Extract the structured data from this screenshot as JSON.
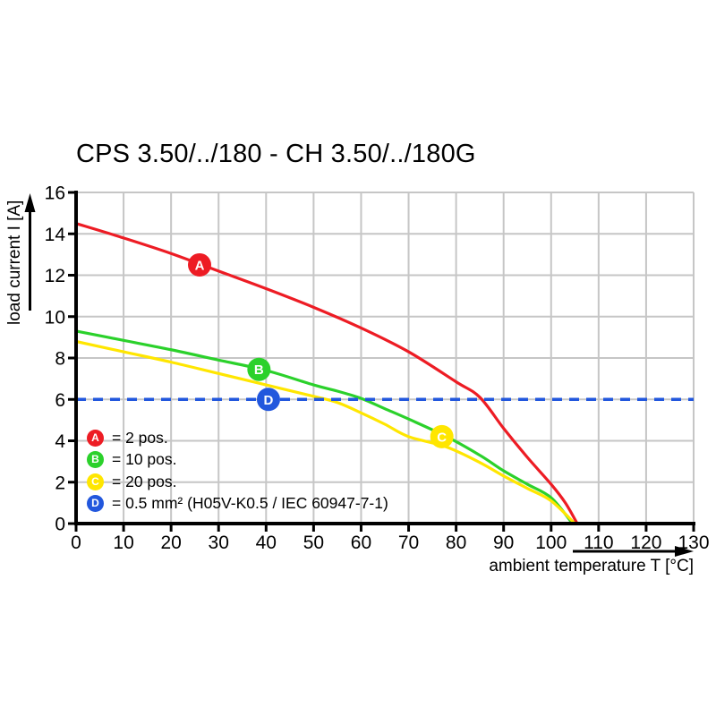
{
  "title": "CPS 3.50/../180 - CH 3.50/../180G",
  "axes": {
    "x_label": "ambient temperature T [°C]",
    "y_label": "load current I [A]"
  },
  "colors": {
    "grid": "#c6c6c6",
    "axis": "#000000",
    "background": "#ffffff"
  },
  "chart_data": {
    "type": "line",
    "title": "CPS 3.50/../180 - CH 3.50/../180G",
    "xlabel": "ambient temperature T [°C]",
    "ylabel": "load current I [A]",
    "xlim": [
      0,
      130
    ],
    "ylim": [
      0,
      16
    ],
    "x_ticks": [
      0,
      10,
      20,
      30,
      40,
      50,
      60,
      70,
      80,
      90,
      100,
      110,
      120,
      130
    ],
    "y_ticks": [
      0,
      2,
      4,
      6,
      8,
      10,
      12,
      14,
      16
    ],
    "grid": true,
    "legend_position": "inside-bottom-left",
    "series": [
      {
        "name": "A",
        "label": "2 pos.",
        "legend_label": "= 2 pos.",
        "color": "#ed1c24",
        "style": "solid",
        "points": [
          [
            0,
            14.5
          ],
          [
            10,
            13.8
          ],
          [
            20,
            13.05
          ],
          [
            30,
            12.2
          ],
          [
            40,
            11.35
          ],
          [
            50,
            10.45
          ],
          [
            60,
            9.45
          ],
          [
            70,
            8.3
          ],
          [
            80,
            6.85
          ],
          [
            85,
            6.1
          ],
          [
            90,
            4.6
          ],
          [
            95,
            3.2
          ],
          [
            100,
            1.9
          ],
          [
            103,
            1.0
          ],
          [
            105.5,
            0
          ]
        ],
        "marker": {
          "letter": "A",
          "x": 26,
          "y": 12.5
        }
      },
      {
        "name": "B",
        "label": "10 pos.",
        "legend_label": "= 10 pos.",
        "color": "#2bd12b",
        "style": "solid",
        "points": [
          [
            0,
            9.3
          ],
          [
            10,
            8.85
          ],
          [
            20,
            8.4
          ],
          [
            30,
            7.9
          ],
          [
            40,
            7.4
          ],
          [
            50,
            6.7
          ],
          [
            55,
            6.4
          ],
          [
            60,
            6.05
          ],
          [
            65,
            5.55
          ],
          [
            70,
            5.05
          ],
          [
            78,
            4.2
          ],
          [
            85,
            3.3
          ],
          [
            90,
            2.55
          ],
          [
            95,
            1.9
          ],
          [
            100,
            1.25
          ],
          [
            104.5,
            0
          ]
        ],
        "marker": {
          "letter": "B",
          "x": 38.5,
          "y": 7.45
        }
      },
      {
        "name": "C",
        "label": "20 pos.",
        "legend_label": "= 20 pos.",
        "color": "#ffe600",
        "style": "solid",
        "points": [
          [
            0,
            8.8
          ],
          [
            10,
            8.3
          ],
          [
            20,
            7.8
          ],
          [
            30,
            7.25
          ],
          [
            40,
            6.7
          ],
          [
            50,
            6.15
          ],
          [
            55,
            5.85
          ],
          [
            60,
            5.35
          ],
          [
            65,
            4.8
          ],
          [
            70,
            4.2
          ],
          [
            78,
            3.7
          ],
          [
            85,
            2.95
          ],
          [
            90,
            2.3
          ],
          [
            95,
            1.7
          ],
          [
            100,
            1.1
          ],
          [
            105,
            0
          ]
        ],
        "marker": {
          "letter": "C",
          "x": 77,
          "y": 4.2
        }
      },
      {
        "name": "D",
        "label": "0.5 mm² (H05V-K0.5 / IEC 60947-7-1)",
        "legend_label": "= 0.5 mm² (H05V-K0.5 / IEC 60947-7-1)",
        "color": "#2257dd",
        "style": "dashed",
        "threshold": 6,
        "points": [
          [
            0,
            6
          ],
          [
            130,
            6
          ]
        ],
        "marker": {
          "letter": "D",
          "x": 40.5,
          "y": 6
        }
      }
    ]
  }
}
